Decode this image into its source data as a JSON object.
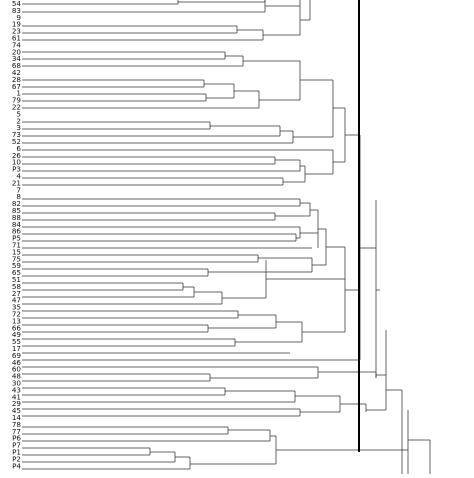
{
  "dendrogram": {
    "leaves": [
      "54",
      "83",
      "9",
      "19",
      "23",
      "61",
      "74",
      "20",
      "34",
      "68",
      "42",
      "28",
      "67",
      "1",
      "79",
      "22",
      "5",
      "2",
      "3",
      "73",
      "52",
      "6",
      "26",
      "10",
      "P3",
      "4",
      "21",
      "7",
      "8",
      "82",
      "85",
      "88",
      "84",
      "86",
      "P5",
      "71",
      "15",
      "75",
      "59",
      "65",
      "51",
      "58",
      "27",
      "47",
      "35",
      "72",
      "13",
      "66",
      "49",
      "55",
      "17",
      "69",
      "46",
      "60",
      "48",
      "30",
      "43",
      "41",
      "29",
      "45",
      "14",
      "78",
      "77",
      "P6",
      "P7",
      "P1",
      "P2",
      "P4"
    ]
  },
  "colors": {
    "link": "#333333",
    "cut_line": "#000000",
    "label": "#111111",
    "background": "#ffffff"
  }
}
